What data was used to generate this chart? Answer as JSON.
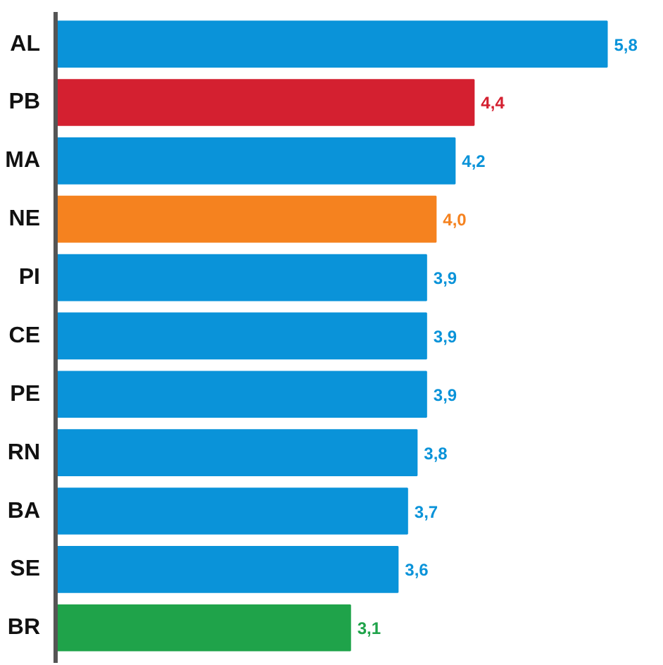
{
  "chart_data": {
    "type": "bar",
    "orientation": "horizontal",
    "categories": [
      "AL",
      "PB",
      "MA",
      "NE",
      "PI",
      "CE",
      "PE",
      "RN",
      "BA",
      "SE",
      "BR"
    ],
    "values": [
      5.8,
      4.4,
      4.2,
      4.0,
      3.9,
      3.9,
      3.9,
      3.8,
      3.7,
      3.6,
      3.1
    ],
    "colors": [
      "#0a93d9",
      "#d42030",
      "#0a93d9",
      "#f5821f",
      "#0a93d9",
      "#0a93d9",
      "#0a93d9",
      "#0a93d9",
      "#0a93d9",
      "#0a93d9",
      "#1fa34a"
    ],
    "value_labels": [
      "5,8",
      "4,4",
      "4,2",
      "4,0",
      "3,9",
      "3,9",
      "3,9",
      "3,8",
      "3,7",
      "3,6",
      "3,1"
    ],
    "tick_labels": "y"
  }
}
